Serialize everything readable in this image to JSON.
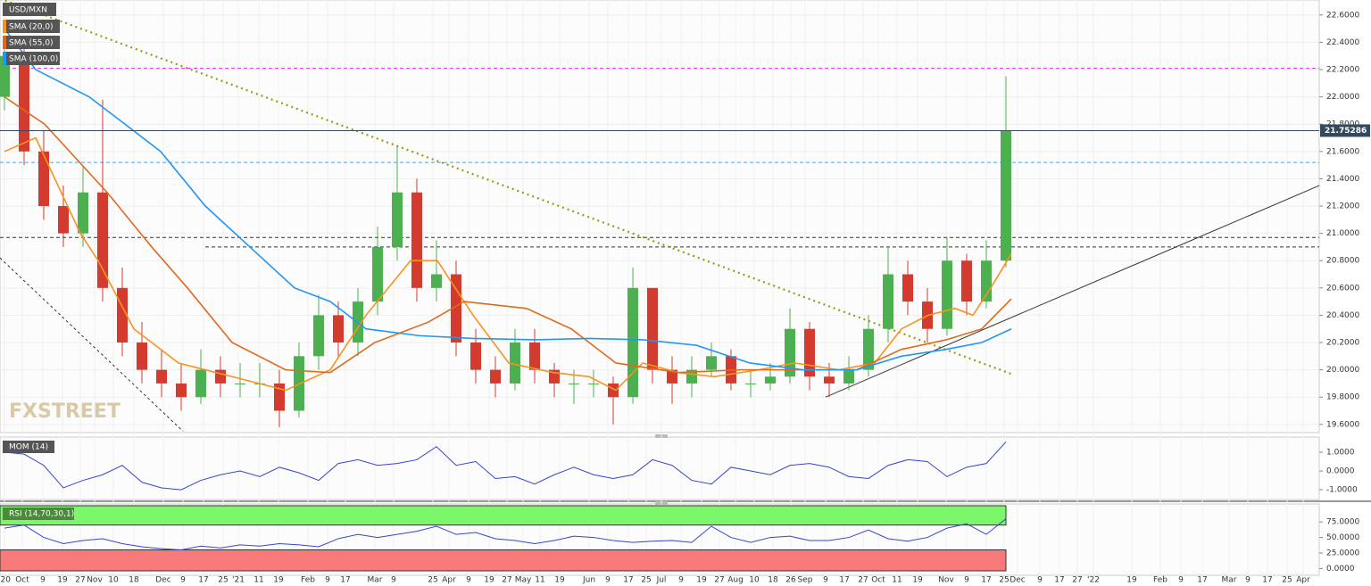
{
  "chart_data": [
    {
      "type": "candlestick",
      "title": "USD/MXN",
      "watermark": "FXSTREET",
      "xlim": [
        0,
        1478
      ],
      "ylim": [
        19.54,
        22.71
      ],
      "yticks": [
        {
          "value": 22.6,
          "label": "22.6000"
        },
        {
          "value": 22.4,
          "label": "22.4000"
        },
        {
          "value": 22.2,
          "label": "22.2000"
        },
        {
          "value": 22.0,
          "label": "22.0000"
        },
        {
          "value": 21.8,
          "label": "21.8000"
        },
        {
          "value": 21.6,
          "label": "21.6000"
        },
        {
          "value": 21.4,
          "label": "21.4000"
        },
        {
          "value": 21.2,
          "label": "21.2000"
        },
        {
          "value": 21.0,
          "label": "21.0000"
        },
        {
          "value": 20.8,
          "label": "20.8000"
        },
        {
          "value": 20.6,
          "label": "20.6000"
        },
        {
          "value": 20.4,
          "label": "20.4000"
        },
        {
          "value": 20.2,
          "label": "20.2000"
        },
        {
          "value": 20.0,
          "label": "20.0000"
        },
        {
          "value": 19.8,
          "label": "19.8000"
        },
        {
          "value": 19.6,
          "label": "19.6000"
        }
      ],
      "up_color": "#4caf50",
      "down_color": "#d23b2e",
      "grid": true,
      "x": [
        5,
        27,
        49,
        71,
        93,
        115,
        137,
        159,
        181,
        203,
        225,
        247,
        269,
        291,
        313,
        335,
        357,
        379,
        401,
        423,
        445,
        467,
        489,
        511,
        533,
        555,
        577,
        599,
        621,
        643,
        665,
        687,
        709,
        731,
        753,
        775,
        797,
        819,
        841,
        863,
        885,
        907,
        929,
        951,
        973,
        995,
        1017,
        1039,
        1061,
        1083,
        1105,
        1127
      ],
      "open": [
        22.0,
        22.3,
        21.6,
        21.2,
        21.0,
        21.3,
        20.6,
        20.2,
        20.0,
        19.9,
        19.8,
        20.0,
        19.9,
        19.9,
        19.9,
        19.7,
        20.1,
        20.4,
        20.2,
        20.5,
        20.9,
        21.3,
        20.6,
        20.7,
        20.2,
        20.0,
        19.9,
        20.2,
        20.0,
        19.9,
        19.9,
        19.9,
        19.8,
        20.6,
        20.0,
        19.9,
        20.0,
        20.1,
        19.9,
        19.9,
        19.95,
        20.3,
        19.95,
        19.9,
        20.0,
        20.3,
        20.7,
        20.5,
        20.3,
        20.8,
        20.5,
        20.8
      ],
      "high": [
        22.45,
        22.4,
        21.75,
        21.35,
        21.5,
        21.98,
        20.75,
        20.35,
        20.15,
        20.05,
        20.15,
        20.1,
        20.05,
        20.05,
        20.0,
        20.2,
        20.55,
        20.5,
        20.6,
        21.05,
        21.64,
        21.4,
        20.95,
        20.8,
        20.3,
        20.1,
        20.3,
        20.3,
        20.05,
        20.0,
        20.0,
        19.95,
        20.75,
        20.6,
        20.1,
        20.1,
        20.2,
        20.15,
        20.0,
        20.05,
        20.45,
        20.35,
        20.05,
        20.1,
        20.4,
        20.9,
        20.8,
        20.6,
        20.97,
        20.85,
        20.95,
        22.15
      ],
      "low": [
        21.9,
        21.5,
        21.1,
        20.9,
        20.9,
        20.5,
        20.1,
        19.9,
        19.8,
        19.7,
        19.75,
        19.8,
        19.8,
        19.8,
        19.58,
        19.65,
        20.0,
        20.1,
        20.1,
        20.4,
        20.8,
        20.5,
        20.5,
        20.1,
        19.9,
        19.8,
        19.85,
        19.9,
        19.8,
        19.75,
        19.8,
        19.6,
        19.75,
        19.9,
        19.75,
        19.8,
        19.95,
        19.85,
        19.8,
        19.85,
        19.9,
        19.85,
        19.8,
        19.85,
        19.95,
        20.2,
        20.4,
        20.2,
        20.25,
        20.4,
        20.45,
        20.75
      ],
      "close": [
        22.3,
        21.6,
        21.2,
        21.0,
        21.3,
        20.6,
        20.2,
        20.0,
        19.9,
        19.8,
        20.0,
        19.9,
        19.9,
        19.9,
        19.7,
        20.1,
        20.4,
        20.2,
        20.5,
        20.9,
        21.3,
        20.6,
        20.7,
        20.2,
        20.0,
        19.9,
        20.2,
        20.0,
        19.9,
        19.9,
        19.9,
        19.8,
        20.6,
        20.0,
        19.9,
        20.0,
        20.1,
        19.9,
        19.9,
        19.95,
        20.3,
        19.95,
        19.9,
        20.0,
        20.3,
        20.7,
        20.5,
        20.3,
        20.8,
        20.5,
        20.8,
        21.75
      ],
      "last_price": 21.75286,
      "series": [
        {
          "name": "SMA (20,0)",
          "color": "#f7931e",
          "x": [
            5,
            40,
            90,
            110,
            150,
            200,
            260,
            320,
            370,
            410,
            460,
            490,
            530,
            570,
            620,
            660,
            690,
            720,
            760,
            800,
            850,
            890,
            940,
            980,
            1010,
            1040,
            1070,
            1090,
            1110,
            1133
          ],
          "values": [
            21.6,
            21.7,
            21.0,
            20.8,
            20.3,
            20.05,
            19.95,
            19.85,
            20.0,
            20.4,
            20.8,
            20.8,
            20.4,
            20.05,
            19.98,
            19.95,
            19.85,
            20.05,
            19.98,
            19.95,
            20.0,
            20.05,
            20.0,
            20.05,
            20.3,
            20.4,
            20.45,
            20.4,
            20.6,
            20.85
          ]
        },
        {
          "name": "SMA (55,0)",
          "color": "#e06a1c",
          "x": [
            5,
            50,
            120,
            170,
            210,
            260,
            320,
            370,
            420,
            480,
            520,
            590,
            640,
            690,
            760,
            830,
            900,
            960,
            1010,
            1060,
            1100,
            1133
          ],
          "values": [
            22.0,
            21.8,
            21.3,
            20.9,
            20.6,
            20.2,
            20.0,
            19.98,
            20.2,
            20.35,
            20.5,
            20.45,
            20.3,
            20.05,
            19.98,
            20.0,
            20.0,
            20.0,
            20.15,
            20.22,
            20.3,
            20.52
          ]
        },
        {
          "name": "SMA (100,0)",
          "color": "#2196f3",
          "x": [
            5,
            40,
            100,
            180,
            230,
            280,
            330,
            370,
            410,
            470,
            530,
            600,
            660,
            720,
            780,
            840,
            900,
            960,
            1010,
            1060,
            1100,
            1133
          ],
          "values": [
            22.5,
            22.2,
            22.0,
            21.6,
            21.2,
            20.9,
            20.6,
            20.5,
            20.3,
            20.25,
            20.23,
            20.22,
            20.23,
            20.22,
            20.18,
            20.05,
            20.0,
            20.0,
            20.1,
            20.15,
            20.2,
            20.3
          ]
        }
      ],
      "levels": [
        {
          "value": 22.21,
          "color": "#e040fb",
          "x0": 0
        },
        {
          "value": 21.52,
          "color": "#42a5f5",
          "x0": 0
        },
        {
          "value": 20.97,
          "color": "#333333",
          "x0": 0
        },
        {
          "value": 20.9,
          "color": "#333333",
          "x0": 230
        }
      ],
      "trendlines": [
        {
          "from": [
            0,
            22.72
          ],
          "to": [
            1133,
            19.97
          ],
          "color": "#9a9a10",
          "dash": "2,4",
          "width": 2.2
        },
        {
          "from": [
            925,
            19.8
          ],
          "to": [
            1478,
            21.35
          ],
          "color": "#333333",
          "dash": "none",
          "width": 1
        },
        {
          "from": [
            0,
            20.82
          ],
          "to": [
            205,
            19.55
          ],
          "color": "#333333",
          "dash": "3,3",
          "width": 1
        }
      ]
    },
    {
      "type": "line",
      "title": "MOM (14)",
      "ylim": [
        -1.52,
        1.81
      ],
      "color": "#3645c9",
      "yticks": [
        {
          "value": 1,
          "label": "1.0000"
        },
        {
          "value": 0,
          "label": "0.0000"
        },
        {
          "value": -1,
          "label": "-1.0000"
        }
      ],
      "x": [
        5,
        27,
        49,
        71,
        93,
        115,
        137,
        159,
        181,
        203,
        225,
        247,
        269,
        291,
        313,
        335,
        357,
        379,
        401,
        423,
        445,
        467,
        489,
        511,
        533,
        555,
        577,
        599,
        621,
        643,
        665,
        687,
        709,
        731,
        753,
        775,
        797,
        819,
        841,
        863,
        885,
        907,
        929,
        951,
        973,
        995,
        1017,
        1039,
        1061,
        1083,
        1105,
        1127
      ],
      "values": [
        1.0,
        0.9,
        0.3,
        -0.9,
        -0.5,
        -0.2,
        0.3,
        -0.6,
        -0.9,
        -1.0,
        -0.5,
        -0.2,
        0.0,
        -0.3,
        0.2,
        -0.1,
        -0.5,
        0.4,
        0.6,
        0.3,
        0.4,
        0.6,
        1.3,
        0.3,
        0.5,
        -0.4,
        -0.3,
        -0.7,
        -0.2,
        0.2,
        -0.2,
        -0.4,
        -0.2,
        0.6,
        0.3,
        -0.5,
        -0.7,
        0.2,
        0.0,
        -0.2,
        0.3,
        0.4,
        0.2,
        -0.3,
        -0.4,
        0.3,
        0.6,
        0.5,
        -0.3,
        0.2,
        0.4,
        1.55
      ]
    },
    {
      "type": "line",
      "title": "RSI (14,70,30,1)",
      "ylim": [
        -11,
        104
      ],
      "color": "#3645c9",
      "overbought": 70,
      "oversold": 30,
      "overbought_color": "#7cf76c",
      "oversold_color": "#f77a7a",
      "yticks": [
        {
          "value": 75,
          "label": "75.0000"
        },
        {
          "value": 50,
          "label": "50.0000"
        },
        {
          "value": 25,
          "label": "25.0000"
        },
        {
          "value": 0,
          "label": "0.0000"
        }
      ],
      "x": [
        5,
        27,
        49,
        71,
        93,
        115,
        137,
        159,
        181,
        203,
        225,
        247,
        269,
        291,
        313,
        335,
        357,
        379,
        401,
        423,
        445,
        467,
        489,
        511,
        533,
        555,
        577,
        599,
        621,
        643,
        665,
        687,
        709,
        731,
        753,
        775,
        797,
        819,
        841,
        863,
        885,
        907,
        929,
        951,
        973,
        995,
        1017,
        1039,
        1061,
        1083,
        1105,
        1127
      ],
      "values": [
        65,
        70,
        50,
        40,
        45,
        48,
        40,
        35,
        32,
        30,
        36,
        33,
        38,
        36,
        40,
        38,
        35,
        48,
        55,
        50,
        55,
        60,
        68,
        55,
        58,
        48,
        45,
        40,
        45,
        52,
        50,
        45,
        42,
        44,
        45,
        42,
        68,
        50,
        42,
        50,
        52,
        45,
        45,
        50,
        62,
        48,
        44,
        50,
        65,
        72,
        55,
        80
      ],
      "xticks": [
        {
          "value": 5,
          "label": "'20"
        },
        {
          "value": 25,
          "label": "Oct"
        },
        {
          "value": 48,
          "label": "9"
        },
        {
          "value": 70,
          "label": "19"
        },
        {
          "value": 90,
          "label": "27"
        },
        {
          "value": 106,
          "label": "Nov"
        },
        {
          "value": 127,
          "label": "10"
        },
        {
          "value": 150,
          "label": "18"
        },
        {
          "value": 183,
          "label": "Dec"
        },
        {
          "value": 205,
          "label": "9"
        },
        {
          "value": 228,
          "label": "17"
        },
        {
          "value": 250,
          "label": "25"
        },
        {
          "value": 267,
          "label": "'21"
        },
        {
          "value": 290,
          "label": "11"
        },
        {
          "value": 312,
          "label": "19"
        },
        {
          "value": 345,
          "label": "Feb"
        },
        {
          "value": 367,
          "label": "9"
        },
        {
          "value": 387,
          "label": "17"
        },
        {
          "value": 420,
          "label": "Mar"
        },
        {
          "value": 441,
          "label": "9"
        },
        {
          "value": 485,
          "label": "25"
        },
        {
          "value": 503,
          "label": "Apr"
        },
        {
          "value": 525,
          "label": "9"
        },
        {
          "value": 548,
          "label": "19"
        },
        {
          "value": 568,
          "label": "27"
        },
        {
          "value": 586,
          "label": "May"
        },
        {
          "value": 605,
          "label": "11"
        },
        {
          "value": 627,
          "label": "19"
        },
        {
          "value": 660,
          "label": "Jun"
        },
        {
          "value": 681,
          "label": "9"
        },
        {
          "value": 704,
          "label": "17"
        },
        {
          "value": 724,
          "label": "25"
        },
        {
          "value": 741,
          "label": "Jul"
        },
        {
          "value": 763,
          "label": "9"
        },
        {
          "value": 786,
          "label": "19"
        },
        {
          "value": 806,
          "label": "27"
        },
        {
          "value": 824,
          "label": "Aug"
        },
        {
          "value": 845,
          "label": "10"
        },
        {
          "value": 866,
          "label": "18"
        },
        {
          "value": 886,
          "label": "26"
        },
        {
          "value": 902,
          "label": "Sep"
        },
        {
          "value": 925,
          "label": "9"
        },
        {
          "value": 946,
          "label": "17"
        },
        {
          "value": 967,
          "label": "27"
        },
        {
          "value": 984,
          "label": "Oct"
        },
        {
          "value": 1005,
          "label": "11"
        },
        {
          "value": 1028,
          "label": "19"
        },
        {
          "value": 1060,
          "label": "Nov"
        },
        {
          "value": 1083,
          "label": "9"
        },
        {
          "value": 1105,
          "label": "17"
        },
        {
          "value": 1125,
          "label": "25"
        },
        {
          "value": 1140,
          "label": "Dec"
        },
        {
          "value": 1165,
          "label": "9"
        },
        {
          "value": 1187,
          "label": "17"
        },
        {
          "value": 1207,
          "label": "27"
        },
        {
          "value": 1225,
          "label": "'22"
        },
        {
          "value": 1268,
          "label": "19"
        },
        {
          "value": 1300,
          "label": "Feb"
        },
        {
          "value": 1323,
          "label": "9"
        },
        {
          "value": 1347,
          "label": "17"
        },
        {
          "value": 1377,
          "label": "Mar"
        },
        {
          "value": 1398,
          "label": "9"
        },
        {
          "value": 1420,
          "label": "17"
        },
        {
          "value": 1442,
          "label": "25"
        },
        {
          "value": 1460,
          "label": "Apr"
        }
      ]
    }
  ]
}
